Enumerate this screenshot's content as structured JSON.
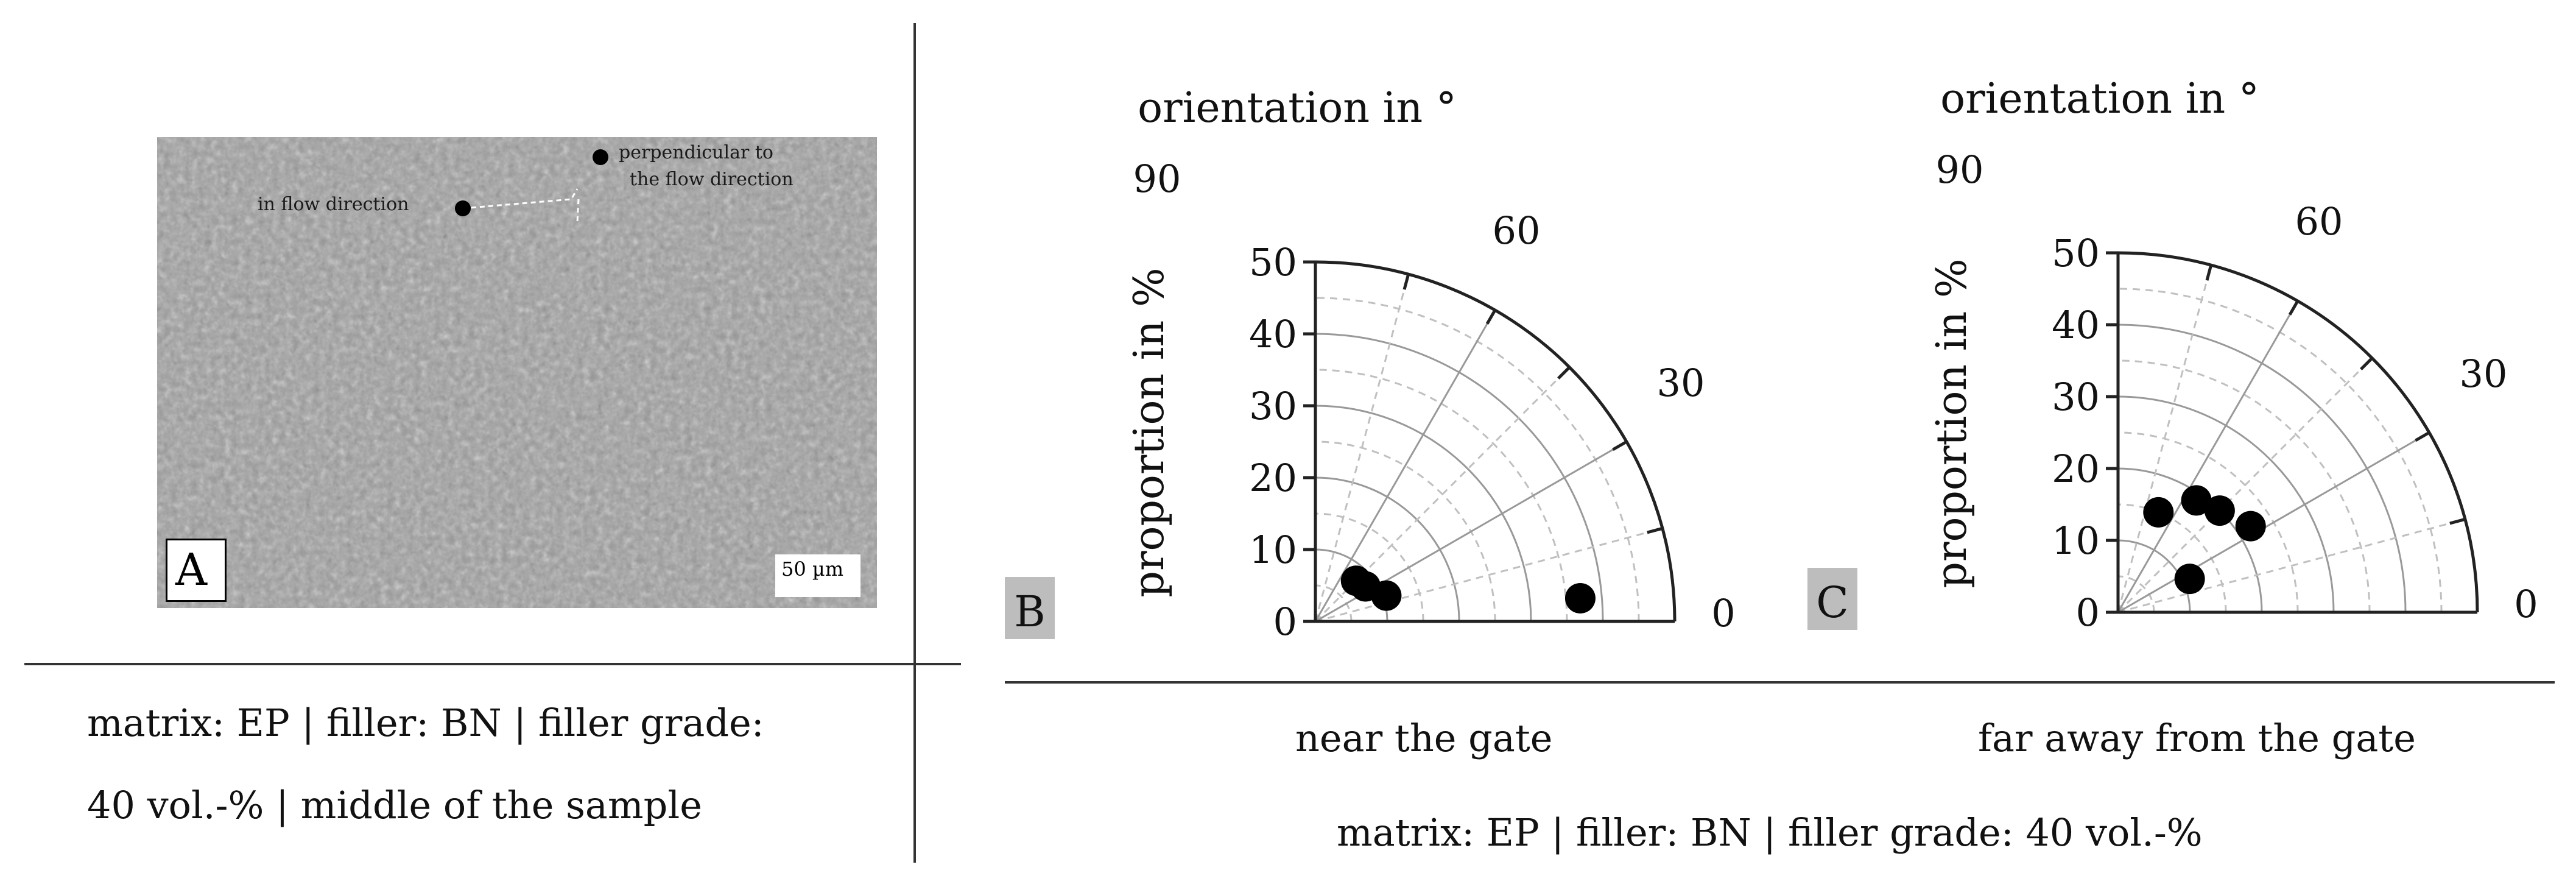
{
  "panel_a": {
    "label": "A",
    "annotations": {
      "in_flow": "in flow direction",
      "perpendicular_line1": "perpendicular to",
      "perpendicular_line2": "the flow direction"
    },
    "scale_bar": "50 µm",
    "caption_line1": "matrix: EP | filler: BN | filler grade:",
    "caption_line2": "40 vol.-% | middle of the sample"
  },
  "shared_caption": "matrix: EP | filler: BN | filler grade: 40 vol.-%",
  "colors": {
    "marker": "#000000",
    "panel_label_bg": "#bdbdbd",
    "grid_solid": "#999999",
    "grid_dashed": "#c0c0c0"
  },
  "chart_data": [
    {
      "type": "scatter",
      "coordinate_system": "polar quarter",
      "panel_label": "B",
      "caption": "near the gate",
      "angle_label": "orientation in °",
      "radius_label": "proportion in %",
      "angle_ticks": [
        "0",
        "30",
        "60",
        "90"
      ],
      "radius_ticks": [
        "0",
        "10",
        "20",
        "30",
        "40",
        "50"
      ],
      "rlim": [
        0,
        50
      ],
      "angle_range": [
        0,
        90
      ],
      "grid": true,
      "points": [
        {
          "angle": 45,
          "r": 8
        },
        {
          "angle": 35,
          "r": 8.5
        },
        {
          "angle": 20,
          "r": 10.5
        },
        {
          "angle": 5,
          "r": 37
        }
      ]
    },
    {
      "type": "scatter",
      "coordinate_system": "polar quarter",
      "panel_label": "C",
      "caption": "far away from the gate",
      "angle_label": "orientation in °",
      "radius_label": "proportion in %",
      "angle_ticks": [
        "0",
        "30",
        "60",
        "90"
      ],
      "radius_ticks": [
        "0",
        "10",
        "20",
        "30",
        "40",
        "50"
      ],
      "rlim": [
        0,
        50
      ],
      "angle_range": [
        0,
        90
      ],
      "grid": true,
      "points": [
        {
          "angle": 68,
          "r": 15
        },
        {
          "angle": 55,
          "r": 19
        },
        {
          "angle": 45,
          "r": 20
        },
        {
          "angle": 33,
          "r": 22
        },
        {
          "angle": 25,
          "r": 11
        }
      ]
    }
  ]
}
